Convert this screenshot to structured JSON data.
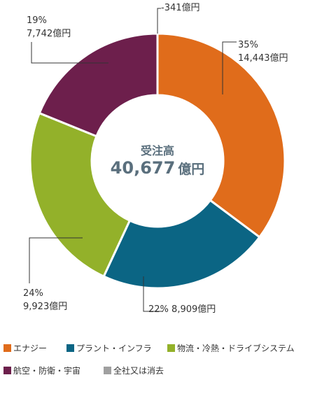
{
  "chart_data": {
    "type": "pie",
    "donut": true,
    "center_title": "受注高",
    "total_value": "40,677",
    "total_unit": "億円",
    "start_angle_deg": 0,
    "order": "clockwise",
    "segments": [
      {
        "key": "energy",
        "name": "エナジー",
        "value": 14443,
        "value_text": "14,443億円",
        "percent_text": "35%",
        "color": "#e06c1b"
      },
      {
        "key": "plant",
        "name": "プラント・インフラ",
        "value": 8909,
        "value_text": "8,909億円",
        "percent_text": "22%",
        "color": "#0b6584"
      },
      {
        "key": "logistics",
        "name": "物流・冷熱・ドライブシステム",
        "value": 9923,
        "value_text": "9,923億円",
        "percent_text": "24%",
        "color": "#93b12a"
      },
      {
        "key": "aero",
        "name": "航空・防衛・宇宙",
        "value": 7742,
        "value_text": "7,742億円",
        "percent_text": "19%",
        "color": "#6d1f4c"
      },
      {
        "key": "corp",
        "name": "全社又は消去",
        "value": -341,
        "value_text": "-341億円",
        "percent_text": "",
        "color": "#a0a0a0"
      }
    ]
  }
}
